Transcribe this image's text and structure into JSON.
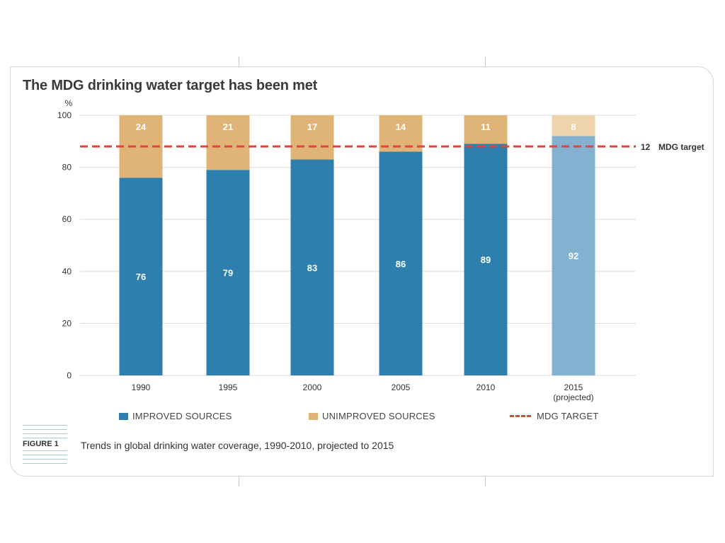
{
  "chart_data": {
    "type": "bar",
    "stacked": true,
    "title": "The MDG drinking water target has been met",
    "ylabel": "%",
    "ylim": [
      0,
      100
    ],
    "yticks": [
      0,
      20,
      40,
      60,
      80,
      100
    ],
    "grid": true,
    "categories": [
      "1990",
      "1995",
      "2000",
      "2005",
      "2010",
      "2015 (projected)"
    ],
    "category_lines": [
      [
        "1990"
      ],
      [
        "1995"
      ],
      [
        "2000"
      ],
      [
        "2005"
      ],
      [
        "2010"
      ],
      [
        "2015",
        "(projected)"
      ]
    ],
    "projected_index": 5,
    "series": [
      {
        "name": "IMPROVED SOURCES",
        "values": [
          76,
          79,
          83,
          86,
          89,
          92
        ],
        "color": "#2e7fae",
        "projected_color": "#82b2cf"
      },
      {
        "name": "UNIMPROVED SOURCES",
        "values": [
          24,
          21,
          17,
          14,
          11,
          8
        ],
        "color": "#e0b476",
        "projected_color": "#efd3ad"
      }
    ],
    "target_line": {
      "name": "MDG TARGET",
      "value": 88,
      "color": "#e2443b",
      "annotation_number": "12",
      "annotation_text": "MDG target"
    },
    "legend": [
      "IMPROVED SOURCES",
      "UNIMPROVED SOURCES",
      "MDG TARGET"
    ],
    "legend_position": "bottom"
  },
  "caption": {
    "figure_label": "FIGURE 1",
    "text": "Trends in global drinking water coverage, 1990-2010, projected to 2015"
  }
}
